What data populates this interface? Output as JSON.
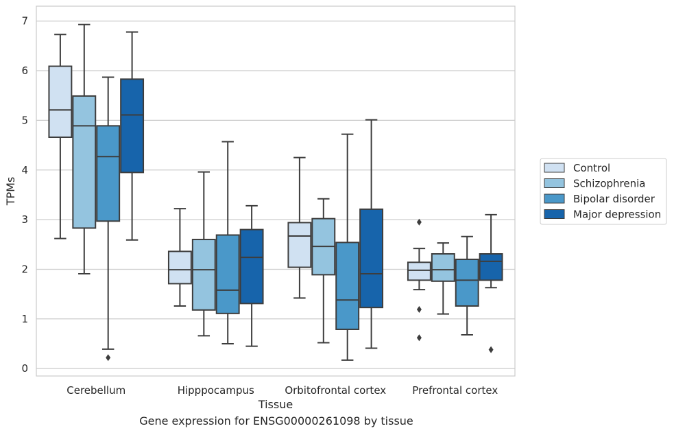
{
  "caption": "Gene expression for ENSG00000261098 by tissue",
  "chart_data": {
    "type": "box",
    "xlabel": "Tissue",
    "ylabel": "TPMs",
    "ylim": [
      -0.15,
      7.3
    ],
    "yticks": [
      0,
      1,
      2,
      3,
      4,
      5,
      6,
      7
    ],
    "grid": "horizontal",
    "legend_position": "right",
    "categories": [
      "Cerebellum",
      "Hipppocampus",
      "Orbitofrontal cortex",
      "Prefrontal cortex"
    ],
    "series": [
      {
        "name": "Control",
        "color": "#d0e1f2",
        "boxes": [
          {
            "whislo": 2.62,
            "q1": 4.66,
            "med": 5.21,
            "q3": 6.09,
            "whishi": 6.73,
            "fliers": []
          },
          {
            "whislo": 1.26,
            "q1": 1.71,
            "med": 1.99,
            "q3": 2.36,
            "whishi": 3.22,
            "fliers": []
          },
          {
            "whislo": 1.42,
            "q1": 2.04,
            "med": 2.67,
            "q3": 2.94,
            "whishi": 4.25,
            "fliers": []
          },
          {
            "whislo": 1.59,
            "q1": 1.78,
            "med": 1.98,
            "q3": 2.14,
            "whishi": 2.42,
            "fliers": [
              2.95,
              1.19,
              0.62
            ]
          }
        ]
      },
      {
        "name": "Schizophrenia",
        "color": "#94c4df",
        "boxes": [
          {
            "whislo": 1.91,
            "q1": 2.83,
            "med": 4.89,
            "q3": 5.49,
            "whishi": 6.93,
            "fliers": []
          },
          {
            "whislo": 0.66,
            "q1": 1.18,
            "med": 1.99,
            "q3": 2.6,
            "whishi": 3.96,
            "fliers": []
          },
          {
            "whislo": 0.52,
            "q1": 1.89,
            "med": 2.46,
            "q3": 3.02,
            "whishi": 3.42,
            "fliers": []
          },
          {
            "whislo": 1.1,
            "q1": 1.76,
            "med": 1.99,
            "q3": 2.31,
            "whishi": 2.53,
            "fliers": []
          }
        ]
      },
      {
        "name": "Bipolar disorder",
        "color": "#4a98c9",
        "boxes": [
          {
            "whislo": 0.39,
            "q1": 2.97,
            "med": 4.27,
            "q3": 4.89,
            "whishi": 5.87,
            "fliers": [
              0.22
            ]
          },
          {
            "whislo": 0.5,
            "q1": 1.11,
            "med": 1.58,
            "q3": 2.69,
            "whishi": 4.57,
            "fliers": []
          },
          {
            "whislo": 0.17,
            "q1": 0.79,
            "med": 1.38,
            "q3": 2.54,
            "whishi": 4.72,
            "fliers": []
          },
          {
            "whislo": 0.68,
            "q1": 1.26,
            "med": 1.78,
            "q3": 2.2,
            "whishi": 2.66,
            "fliers": []
          }
        ]
      },
      {
        "name": "Major depression",
        "color": "#1764ab",
        "boxes": [
          {
            "whislo": 2.59,
            "q1": 3.95,
            "med": 5.11,
            "q3": 5.83,
            "whishi": 6.78,
            "fliers": []
          },
          {
            "whislo": 0.45,
            "q1": 1.31,
            "med": 2.24,
            "q3": 2.8,
            "whishi": 3.28,
            "fliers": []
          },
          {
            "whislo": 0.41,
            "q1": 1.23,
            "med": 1.91,
            "q3": 3.21,
            "whishi": 5.01,
            "fliers": []
          },
          {
            "whislo": 1.63,
            "q1": 1.78,
            "med": 2.16,
            "q3": 2.31,
            "whishi": 3.1,
            "fliers": [
              0.38
            ]
          }
        ]
      }
    ]
  }
}
